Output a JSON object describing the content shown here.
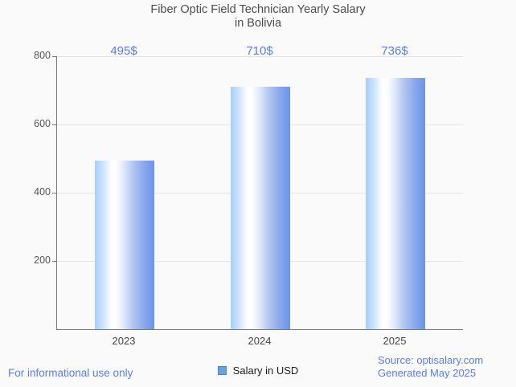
{
  "header": {
    "title_line1": "Fiber Optic Field Technician Yearly Salary",
    "title_line2": "in Bolivia"
  },
  "chart_data": {
    "type": "bar",
    "title": "Fiber Optic Field Technician Yearly Salary in Bolivia",
    "categories": [
      "2023",
      "2024",
      "2025"
    ],
    "series": [
      {
        "name": "Salary in USD",
        "values": [
          495,
          710,
          736
        ]
      }
    ],
    "value_labels": [
      "495$",
      "710$",
      "736$"
    ],
    "xlabel": "",
    "ylabel": "",
    "ylim": [
      0,
      800
    ],
    "yticks": [
      200,
      400,
      600,
      800
    ],
    "grid": true,
    "legend_position": "bottom",
    "bar_color_left": "#a6cffa",
    "bar_color_right": "#6d94e8",
    "value_label_color": "#5b7edb"
  },
  "legend": {
    "marker_color": "#68a3e0",
    "marker_border_color": "#4d82c2"
  },
  "footer": {
    "left_note": "For informational use only",
    "source": "Source: optisalary.com",
    "generated": "Generated May 2025"
  }
}
